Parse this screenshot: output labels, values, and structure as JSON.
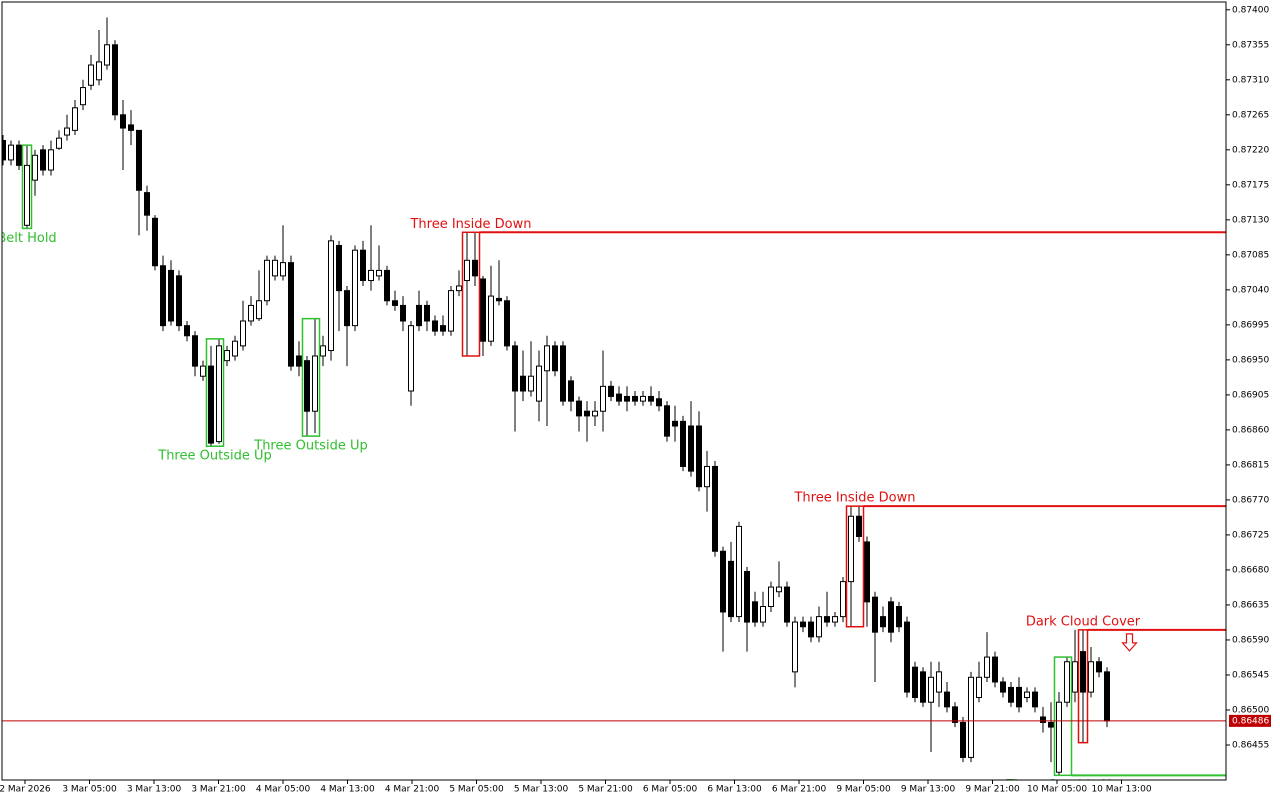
{
  "chart_data": {
    "type": "candlestick",
    "ylim": [
      0.8641,
      0.8741
    ],
    "yticks": [
      {
        "value": 0.874,
        "label": "0.87400"
      },
      {
        "value": 0.87355,
        "label": "0.87355"
      },
      {
        "value": 0.8731,
        "label": "0.87310"
      },
      {
        "value": 0.87265,
        "label": "0.87265"
      },
      {
        "value": 0.8722,
        "label": "0.87220"
      },
      {
        "value": 0.87175,
        "label": "0.87175"
      },
      {
        "value": 0.8713,
        "label": "0.87130"
      },
      {
        "value": 0.87085,
        "label": "0.87085"
      },
      {
        "value": 0.8704,
        "label": "0.87040"
      },
      {
        "value": 0.86995,
        "label": "0.86995"
      },
      {
        "value": 0.8695,
        "label": "0.86950"
      },
      {
        "value": 0.86905,
        "label": "0.86905"
      },
      {
        "value": 0.8686,
        "label": "0.86860"
      },
      {
        "value": 0.86815,
        "label": "0.86815"
      },
      {
        "value": 0.8677,
        "label": "0.86770"
      },
      {
        "value": 0.86725,
        "label": "0.86725"
      },
      {
        "value": 0.8668,
        "label": "0.86680"
      },
      {
        "value": 0.86635,
        "label": "0.86635"
      },
      {
        "value": 0.8659,
        "label": "0.86590"
      },
      {
        "value": 0.86545,
        "label": "0.86545"
      },
      {
        "value": 0.865,
        "label": "0.86500"
      },
      {
        "value": 0.86455,
        "label": "0.86455"
      }
    ],
    "xlabels": [
      "2 Mar 2026",
      "3 Mar 05:00",
      "3 Mar 13:00",
      "3 Mar 21:00",
      "4 Mar 05:00",
      "4 Mar 13:00",
      "4 Mar 21:00",
      "5 Mar 05:00",
      "5 Mar 13:00",
      "5 Mar 21:00",
      "6 Mar 05:00",
      "6 Mar 13:00",
      "6 Mar 21:00",
      "9 Mar 05:00",
      "9 Mar 13:00",
      "9 Mar 21:00",
      "10 Mar 05:00",
      "10 Mar 13:00"
    ],
    "up_color": "#ffffff",
    "down_color": "#000000",
    "open": [
      0.87232,
      0.87207,
      0.87226,
      0.87123,
      0.87181,
      0.8722,
      0.87194,
      0.87222,
      0.87239,
      0.87245,
      0.87278,
      0.87303,
      0.8731,
      0.87329,
      0.87355,
      0.87265,
      0.87252,
      0.87245,
      0.87165,
      0.87132,
      0.87071,
      0.87065,
      0.87058,
      0.86994,
      0.86981,
      0.86929,
      0.86942,
      0.86845,
      0.86949,
      0.86955,
      0.86968,
      0.87,
      0.87003,
      0.87026,
      0.87058,
      0.87058,
      0.87075,
      0.86955,
      0.86949,
      0.86884,
      0.86955,
      0.86962,
      0.87097,
      0.87039,
      0.86994,
      0.87091,
      0.87052,
      0.87058,
      0.87065,
      0.87026,
      0.8702,
      0.8691,
      0.8702,
      0.8702,
      0.87,
      0.86994,
      0.86987,
      0.87039,
      0.87052,
      0.87078,
      0.87054,
      0.86974,
      0.87029,
      0.87026,
      0.86968,
      0.86929,
      0.8691,
      0.86897,
      0.86936,
      0.86968,
      0.86968,
      0.86923,
      0.86897,
      0.86884,
      0.86878,
      0.86884,
      0.86916,
      0.86906,
      0.86903,
      0.86903,
      0.86897,
      0.86903,
      0.869,
      0.86891,
      0.86871,
      0.86871,
      0.86865,
      0.86865,
      0.86787,
      0.86813,
      0.86704,
      0.86691,
      0.8662,
      0.86678,
      0.86639,
      0.86613,
      0.86633,
      0.86652,
      0.86658,
      0.86549,
      0.86613,
      0.86613,
      0.86594,
      0.8662,
      0.86613,
      0.8662,
      0.86665,
      0.86749,
      0.86716,
      0.86645,
      0.8662,
      0.86639,
      0.86633,
      0.86613,
      0.86555,
      0.86549,
      0.8651,
      0.86523,
      0.86523,
      0.86504,
      0.86484,
      0.86439,
      0.86516,
      0.86542,
      0.86568,
      0.86536,
      0.86529,
      0.86529,
      0.86516,
      0.86523,
      0.86491,
      0.86484,
      0.8642,
      0.8651,
      0.86523,
      0.86575,
      0.86523,
      0.86562,
      0.86549
    ],
    "high": [
      0.87239,
      0.87232,
      0.87232,
      0.87226,
      0.8722,
      0.87226,
      0.87232,
      0.87245,
      0.87265,
      0.87284,
      0.8731,
      0.87342,
      0.87374,
      0.8739,
      0.87361,
      0.87284,
      0.87271,
      0.87245,
      0.87174,
      0.87136,
      0.87084,
      0.87078,
      0.87065,
      0.87,
      0.86987,
      0.86949,
      0.86968,
      0.86977,
      0.86968,
      0.86981,
      0.87026,
      0.87032,
      0.87065,
      0.87084,
      0.87084,
      0.87123,
      0.87084,
      0.86974,
      0.86955,
      0.87003,
      0.86981,
      0.8711,
      0.87103,
      0.87045,
      0.87097,
      0.87103,
      0.87123,
      0.87097,
      0.87071,
      0.87039,
      0.87032,
      0.87,
      0.87039,
      0.87026,
      0.87007,
      0.87007,
      0.87045,
      0.87065,
      0.87114,
      0.87114,
      0.87058,
      0.87071,
      0.87078,
      0.87032,
      0.86974,
      0.86962,
      0.86974,
      0.86962,
      0.86981,
      0.86974,
      0.86974,
      0.86929,
      0.86903,
      0.86897,
      0.86897,
      0.86962,
      0.86923,
      0.86916,
      0.86916,
      0.8691,
      0.8691,
      0.86916,
      0.8691,
      0.86897,
      0.86891,
      0.86878,
      0.86897,
      0.86884,
      0.86833,
      0.8682,
      0.8671,
      0.86716,
      0.86742,
      0.86684,
      0.86652,
      0.86652,
      0.86665,
      0.86691,
      0.86665,
      0.8662,
      0.8662,
      0.8662,
      0.86633,
      0.86652,
      0.86626,
      0.86671,
      0.86762,
      0.86762,
      0.86723,
      0.86652,
      0.86633,
      0.86645,
      0.86639,
      0.8662,
      0.86562,
      0.86555,
      0.86562,
      0.86562,
      0.86536,
      0.8651,
      0.86491,
      0.86549,
      0.86562,
      0.866,
      0.86575,
      0.86542,
      0.86536,
      0.86542,
      0.86529,
      0.86529,
      0.86504,
      0.8651,
      0.86523,
      0.86568,
      0.86603,
      0.86603,
      0.86581,
      0.86568,
      0.86555
    ],
    "low": [
      0.872,
      0.872,
      0.87194,
      0.87119,
      0.87161,
      0.87187,
      0.87187,
      0.8722,
      0.87232,
      0.87239,
      0.87271,
      0.87297,
      0.87303,
      0.87323,
      0.87258,
      0.87194,
      0.87226,
      0.8711,
      0.87116,
      0.87065,
      0.86987,
      0.86994,
      0.86987,
      0.86974,
      0.86929,
      0.86923,
      0.86839,
      0.86842,
      0.86942,
      0.86949,
      0.86962,
      0.86994,
      0.87,
      0.8702,
      0.87052,
      0.87052,
      0.86936,
      0.86929,
      0.86852,
      0.86856,
      0.86942,
      0.86949,
      0.86987,
      0.86942,
      0.86987,
      0.87045,
      0.87039,
      0.87052,
      0.8702,
      0.87013,
      0.86987,
      0.86891,
      0.86987,
      0.86987,
      0.86981,
      0.86981,
      0.86981,
      0.87032,
      0.86955,
      0.87045,
      0.86955,
      0.86968,
      0.8702,
      0.86962,
      0.86858,
      0.86897,
      0.86903,
      0.86871,
      0.86865,
      0.86929,
      0.86891,
      0.86884,
      0.86858,
      0.86845,
      0.86865,
      0.86858,
      0.86897,
      0.86891,
      0.86884,
      0.86891,
      0.86891,
      0.86891,
      0.86884,
      0.86845,
      0.86845,
      0.86807,
      0.868,
      0.86781,
      0.86755,
      0.86697,
      0.86575,
      0.86613,
      0.86613,
      0.86575,
      0.86607,
      0.86607,
      0.86626,
      0.86645,
      0.86607,
      0.86529,
      0.866,
      0.86587,
      0.86587,
      0.86607,
      0.86607,
      0.86613,
      0.86607,
      0.86716,
      0.86607,
      0.86536,
      0.866,
      0.86587,
      0.866,
      0.86516,
      0.8651,
      0.86504,
      0.86446,
      0.86504,
      0.86497,
      0.86478,
      0.86433,
      0.86433,
      0.8651,
      0.86536,
      0.86529,
      0.86516,
      0.86504,
      0.86497,
      0.8651,
      0.86497,
      0.86471,
      0.86433,
      0.86416,
      0.86504,
      0.8651,
      0.86458,
      0.86516,
      0.86542,
      0.86478
    ],
    "close": [
      0.87207,
      0.87226,
      0.872,
      0.872,
      0.87213,
      0.87194,
      0.8722,
      0.87235,
      0.87248,
      0.87274,
      0.873,
      0.87329,
      0.87333,
      0.87355,
      0.87265,
      0.87248,
      0.87245,
      0.87168,
      0.87136,
      0.87071,
      0.86994,
      0.87,
      0.86994,
      0.86981,
      0.86942,
      0.86942,
      0.86843,
      0.86968,
      0.86962,
      0.86974,
      0.87,
      0.8702,
      0.87026,
      0.87078,
      0.87078,
      0.87075,
      0.86942,
      0.86942,
      0.86884,
      0.86955,
      0.86968,
      0.87103,
      0.87039,
      0.86994,
      0.87091,
      0.87052,
      0.87065,
      0.87065,
      0.87026,
      0.8702,
      0.87,
      0.86994,
      0.86994,
      0.87,
      0.86987,
      0.86987,
      0.87039,
      0.87045,
      0.87078,
      0.87058,
      0.86974,
      0.87032,
      0.87026,
      0.86968,
      0.8691,
      0.8691,
      0.86929,
      0.86942,
      0.86968,
      0.86936,
      0.86897,
      0.86897,
      0.86878,
      0.86878,
      0.86884,
      0.86916,
      0.86903,
      0.86897,
      0.86897,
      0.86897,
      0.86903,
      0.86897,
      0.86891,
      0.86852,
      0.86865,
      0.86813,
      0.86807,
      0.86787,
      0.86813,
      0.86704,
      0.86626,
      0.8662,
      0.86736,
      0.86613,
      0.86613,
      0.86633,
      0.86658,
      0.86658,
      0.86613,
      0.86613,
      0.86607,
      0.86594,
      0.8662,
      0.86613,
      0.8662,
      0.86665,
      0.86749,
      0.86723,
      0.86639,
      0.866,
      0.86607,
      0.866,
      0.86607,
      0.86523,
      0.86516,
      0.8651,
      0.86542,
      0.86549,
      0.86504,
      0.86484,
      0.86439,
      0.86542,
      0.86542,
      0.86568,
      0.86536,
      0.86523,
      0.8651,
      0.86504,
      0.86523,
      0.86504,
      0.86484,
      0.86478,
      0.8651,
      0.86562,
      0.86562,
      0.86523,
      0.86562,
      0.86549,
      0.86486
    ],
    "last_price": 0.86486,
    "last_price_color": "#c00000",
    "patterns": [
      {
        "label": "Belt Hold",
        "color": "#2fbf2f",
        "candles": [
          3,
          3
        ],
        "side": "below",
        "extend": false
      },
      {
        "label": "Three Outside Up",
        "color": "#2fbf2f",
        "candles": [
          26,
          27
        ],
        "side": "below",
        "extend": false
      },
      {
        "label": "Three Outside Up",
        "color": "#2fbf2f",
        "candles": [
          38,
          39
        ],
        "side": "below",
        "extend": false
      },
      {
        "label": "Three Inside Down",
        "color": "#e01010",
        "candles": [
          58,
          59
        ],
        "side": "above",
        "extend": true
      },
      {
        "label": "Three Inside Down",
        "color": "#e01010",
        "candles": [
          106,
          107
        ],
        "side": "above",
        "extend": true
      },
      {
        "label": "Dark Cloud Cover",
        "color": "#e01010",
        "candles": [
          135,
          135
        ],
        "side": "above",
        "extend": true,
        "arrow": "down"
      },
      {
        "label": "Three Outside Up",
        "color": "#2fbf2f",
        "candles": [
          132,
          133
        ],
        "side": "below",
        "extend": true
      }
    ]
  }
}
